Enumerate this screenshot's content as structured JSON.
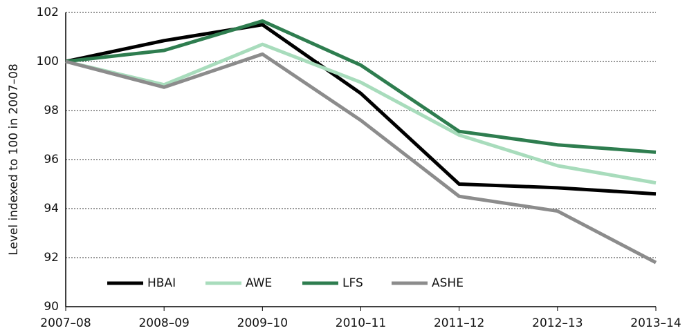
{
  "chart_data": {
    "type": "line",
    "y_label": "Level indexed to 100 in 2007–08",
    "categories": [
      "2007–08",
      "2008–09",
      "2009–10",
      "2010–11",
      "2011–12",
      "2012–13",
      "2013–14"
    ],
    "series": [
      {
        "name": "HBAI",
        "color": "#000000",
        "values": [
          100,
          100.85,
          101.5,
          98.7,
          95.0,
          94.85,
          94.6
        ]
      },
      {
        "name": "AWE",
        "color": "#a8dcbc",
        "values": [
          100,
          99.05,
          100.7,
          99.15,
          97.0,
          95.75,
          95.05
        ]
      },
      {
        "name": "LFS",
        "color": "#2e7d4f",
        "values": [
          100,
          100.45,
          101.65,
          99.85,
          97.15,
          96.6,
          96.3
        ]
      },
      {
        "name": "ASHE",
        "color": "#8c8c8c",
        "values": [
          100,
          98.95,
          100.3,
          97.6,
          94.5,
          93.9,
          91.8
        ]
      }
    ],
    "ylim": [
      90,
      102
    ],
    "yticks": [
      90,
      92,
      94,
      96,
      98,
      100,
      102
    ],
    "grid": true,
    "legend": "bottom-left"
  }
}
